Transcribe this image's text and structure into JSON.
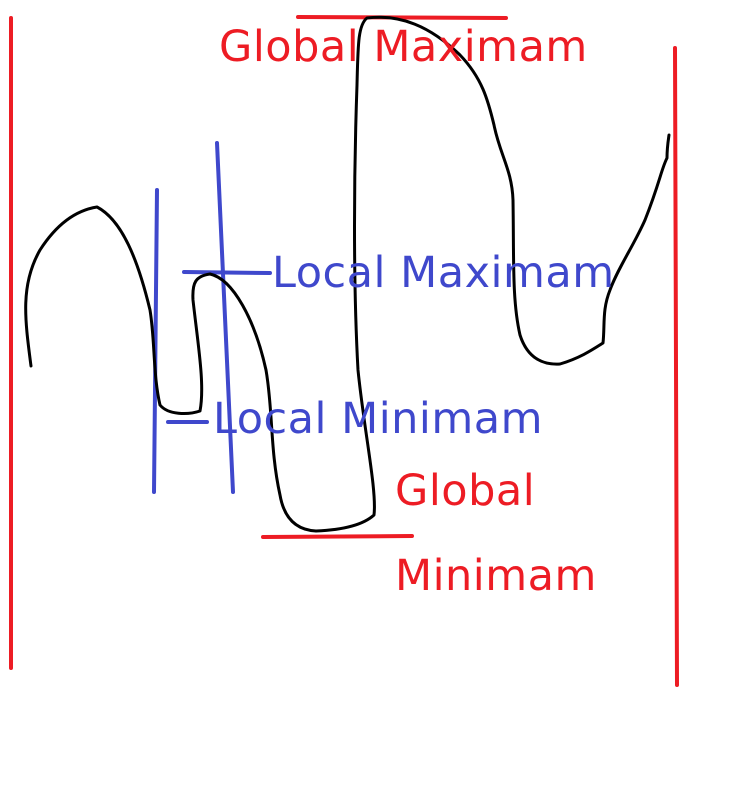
{
  "colors": {
    "global": "#ed1c24",
    "local": "#3f48cc",
    "curve": "#000000",
    "background": "#ffffff"
  },
  "labels": {
    "global_maximum": "Global Maximam",
    "local_maximum": "Local Maximam",
    "local_minimum": "Local Minimam",
    "global_minimum_line1": "Global",
    "global_minimum_line2": "Minimam"
  }
}
